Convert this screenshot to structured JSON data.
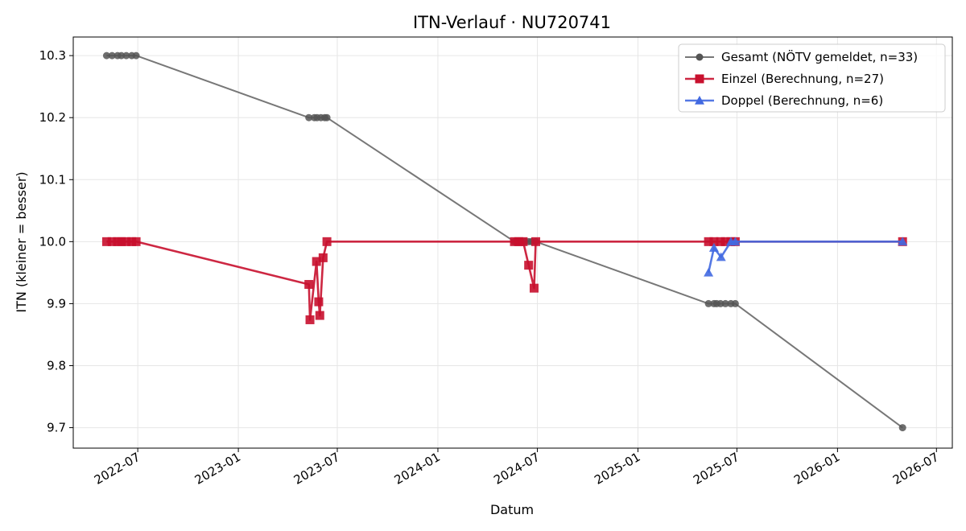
{
  "chart_data": {
    "type": "line",
    "title": "ITN-Verlauf · NU720741",
    "xlabel": "Datum",
    "ylabel": "ITN  (kleiner = besser)",
    "xlim": [
      "2022-03-05",
      "2026-07-30"
    ],
    "ylim": [
      9.667,
      10.33
    ],
    "grid": true,
    "legend_position": "top-right",
    "x_ticks": [
      "2022-07-01",
      "2023-01-01",
      "2023-07-01",
      "2024-01-01",
      "2024-07-01",
      "2025-01-01",
      "2025-07-01",
      "2026-01-01",
      "2026-07-01"
    ],
    "x_tick_labels": [
      "2022-07",
      "2023-01",
      "2023-07",
      "2024-01",
      "2024-07",
      "2025-01",
      "2025-07",
      "2026-01",
      "2026-07"
    ],
    "y_ticks": [
      9.7,
      9.8,
      9.9,
      10.0,
      10.1,
      10.2,
      10.3
    ],
    "y_tick_labels": [
      "9.7",
      "9.8",
      "9.9",
      "10.0",
      "10.1",
      "10.2",
      "10.3"
    ],
    "series": [
      {
        "name": "Gesamt (NÖTV gemeldet, n=33)",
        "color": "#555555",
        "marker": "circle",
        "points": [
          {
            "x": "2022-05-05",
            "y": 10.3
          },
          {
            "x": "2022-05-15",
            "y": 10.3
          },
          {
            "x": "2022-05-25",
            "y": 10.3
          },
          {
            "x": "2022-06-01",
            "y": 10.3
          },
          {
            "x": "2022-06-10",
            "y": 10.3
          },
          {
            "x": "2022-06-20",
            "y": 10.3
          },
          {
            "x": "2022-06-28",
            "y": 10.3
          },
          {
            "x": "2023-05-10",
            "y": 10.2
          },
          {
            "x": "2023-05-20",
            "y": 10.2
          },
          {
            "x": "2023-05-25",
            "y": 10.2
          },
          {
            "x": "2023-06-01",
            "y": 10.2
          },
          {
            "x": "2023-06-08",
            "y": 10.2
          },
          {
            "x": "2023-06-12",
            "y": 10.2
          },
          {
            "x": "2024-05-20",
            "y": 10.0
          },
          {
            "x": "2024-05-25",
            "y": 10.0
          },
          {
            "x": "2024-06-01",
            "y": 10.0
          },
          {
            "x": "2024-06-08",
            "y": 10.0
          },
          {
            "x": "2024-06-15",
            "y": 10.0
          },
          {
            "x": "2024-06-20",
            "y": 10.0
          },
          {
            "x": "2024-06-28",
            "y": 10.0
          },
          {
            "x": "2025-05-10",
            "y": 9.9
          },
          {
            "x": "2025-05-20",
            "y": 9.9
          },
          {
            "x": "2025-05-25",
            "y": 9.9
          },
          {
            "x": "2025-06-01",
            "y": 9.9
          },
          {
            "x": "2025-06-10",
            "y": 9.9
          },
          {
            "x": "2025-06-20",
            "y": 9.9
          },
          {
            "x": "2025-06-28",
            "y": 9.9
          },
          {
            "x": "2026-04-30",
            "y": 9.7
          }
        ]
      },
      {
        "name": "Einzel (Berechnung, n=27)",
        "color": "#c8102e",
        "marker": "square",
        "points": [
          {
            "x": "2022-05-05",
            "y": 10.0
          },
          {
            "x": "2022-05-15",
            "y": 10.0
          },
          {
            "x": "2022-05-25",
            "y": 10.0
          },
          {
            "x": "2022-06-01",
            "y": 10.0
          },
          {
            "x": "2022-06-10",
            "y": 10.0
          },
          {
            "x": "2022-06-20",
            "y": 10.0
          },
          {
            "x": "2022-06-28",
            "y": 10.0
          },
          {
            "x": "2023-05-10",
            "y": 9.931
          },
          {
            "x": "2023-05-12",
            "y": 9.874
          },
          {
            "x": "2023-05-24",
            "y": 9.968
          },
          {
            "x": "2023-05-28",
            "y": 9.903
          },
          {
            "x": "2023-05-30",
            "y": 9.881
          },
          {
            "x": "2023-06-05",
            "y": 9.974
          },
          {
            "x": "2023-06-12",
            "y": 10.0
          },
          {
            "x": "2024-05-20",
            "y": 10.0
          },
          {
            "x": "2024-05-28",
            "y": 10.0
          },
          {
            "x": "2024-06-05",
            "y": 10.0
          },
          {
            "x": "2024-06-15",
            "y": 9.962
          },
          {
            "x": "2024-06-25",
            "y": 9.925
          },
          {
            "x": "2024-06-28",
            "y": 10.0
          },
          {
            "x": "2025-05-10",
            "y": 10.0
          },
          {
            "x": "2025-05-20",
            "y": 10.0
          },
          {
            "x": "2025-06-01",
            "y": 10.0
          },
          {
            "x": "2025-06-10",
            "y": 10.0
          },
          {
            "x": "2025-06-20",
            "y": 10.0
          },
          {
            "x": "2025-06-28",
            "y": 10.0
          },
          {
            "x": "2026-04-30",
            "y": 10.0
          }
        ]
      },
      {
        "name": "Doppel (Berechnung, n=6)",
        "color": "#4169e1",
        "marker": "triangle",
        "points": [
          {
            "x": "2025-05-10",
            "y": 9.95
          },
          {
            "x": "2025-05-20",
            "y": 9.99
          },
          {
            "x": "2025-06-02",
            "y": 9.975
          },
          {
            "x": "2025-06-20",
            "y": 10.0
          },
          {
            "x": "2025-06-28",
            "y": 10.0
          },
          {
            "x": "2026-04-30",
            "y": 10.0
          }
        ]
      }
    ]
  }
}
